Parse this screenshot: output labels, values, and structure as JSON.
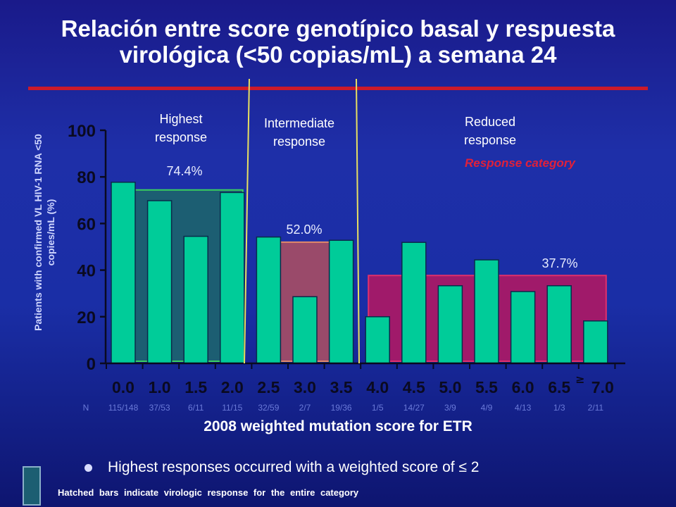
{
  "title_line1": "Relación entre score genotípico basal y respuesta",
  "title_line2": "virológica (<50 copias/mL) a semana 24",
  "categories": {
    "highest": "Highest response",
    "intermediate": "Intermediate response",
    "reduced": "Reduced response"
  },
  "response_category_label": "Response category",
  "n_label": "N",
  "x_axis_title": "2008 weighted mutation score for ETR",
  "bullet_text": "Highest responses occurred with a weighted score of ≤ 2",
  "footnote": "Hatched bars indicate virologic response for the entire category",
  "colors": {
    "bar": "#00cc99",
    "highest_band": "#1c5e72",
    "intermediate_band": "#9a4a6a",
    "reduced_band": "#a01a6a",
    "title_rule": "#cc1a2a",
    "divider": "#e8e060"
  },
  "chart_data": {
    "type": "bar",
    "title": "Relación entre score genotípico basal y respuesta virológica (<50 copias/mL) a semana 24",
    "xlabel": "2008 weighted mutation score for ETR",
    "ylabel": "Patients with confirmed VL HIV-1 RNA <50 copies/mL (%)",
    "ylim": [
      0,
      100
    ],
    "yticks": [
      0,
      20,
      40,
      60,
      80,
      100
    ],
    "categories": [
      "0.0",
      "1.0",
      "1.5",
      "2.0",
      "2.5",
      "3.0",
      "3.5",
      "4.0",
      "4.5",
      "5.0",
      "5.5",
      "6.0",
      "6.5",
      "≥ 7.0"
    ],
    "n": [
      "115/148",
      "37/53",
      "6/11",
      "11/15",
      "32/59",
      "2/7",
      "19/36",
      "1/5",
      "14/27",
      "3/9",
      "4/9",
      "4/13",
      "1/3",
      "2/11"
    ],
    "values": [
      77.7,
      69.8,
      54.5,
      73.3,
      54.2,
      28.6,
      52.8,
      20.0,
      51.9,
      33.3,
      44.4,
      30.8,
      33.3,
      18.2
    ],
    "grid": false,
    "category_bands": [
      {
        "name": "Highest response",
        "from": 0,
        "to": 3,
        "value": 74.4,
        "label": "74.4%"
      },
      {
        "name": "Intermediate response",
        "from": 4,
        "to": 6,
        "value": 52.0,
        "label": "52.0%"
      },
      {
        "name": "Reduced response",
        "from": 7,
        "to": 13,
        "value": 37.7,
        "label": "37.7%"
      }
    ]
  }
}
